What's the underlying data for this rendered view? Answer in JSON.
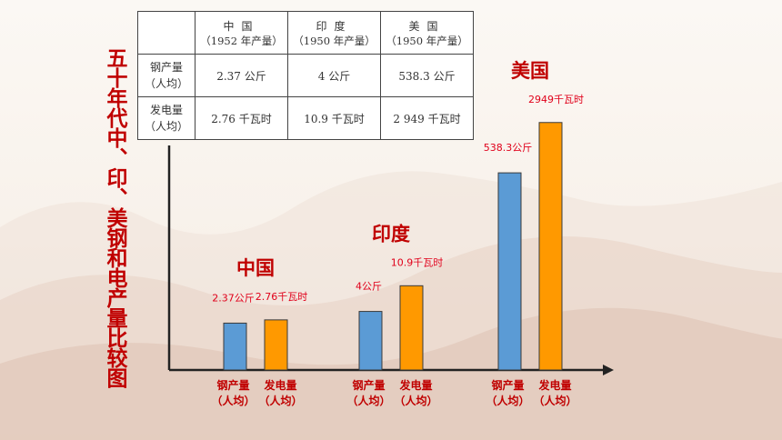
{
  "slide": {
    "vertical_title": "五十年代中、印、美钢和电产量比较图"
  },
  "table": {
    "columns": [
      {
        "name": "中国",
        "sub": "（1952 年产量）"
      },
      {
        "name": "印度",
        "sub": "（1950 年产量）"
      },
      {
        "name": "美国",
        "sub": "（1950 年产量）"
      }
    ],
    "rows": [
      {
        "header_line1": "钢产量",
        "header_line2": "（人均）",
        "cells": [
          "2.37 公斤",
          "4 公斤",
          "538.3 公斤"
        ]
      },
      {
        "header_line1": "发电量",
        "header_line2": "（人均）",
        "cells": [
          "2.76 千瓦时",
          "10.9 千瓦时",
          "2 949 千瓦时"
        ]
      }
    ]
  },
  "chart_data": {
    "type": "bar",
    "categories": [
      "中国",
      "印度",
      "美国"
    ],
    "series": [
      {
        "values": [
          2.37,
          4,
          538.3
        ],
        "color": "#5b9bd5",
        "tick_label": "钢产量（人均）",
        "data_labels": [
          "2.37公斤",
          "4公斤",
          "538.3公斤"
        ]
      },
      {
        "values": [
          2.76,
          10.9,
          2949
        ],
        "color": "#ff9900",
        "tick_label": "发电量（人均）",
        "data_labels": [
          "2.76千瓦时",
          "10.9千瓦时",
          "2949千瓦时"
        ]
      }
    ],
    "scale": "illustrative (not to scale)",
    "grid": false,
    "legend": "none",
    "colors": {
      "title": "#c00000",
      "data_label": "#e0001a",
      "axis": "#222222"
    }
  }
}
